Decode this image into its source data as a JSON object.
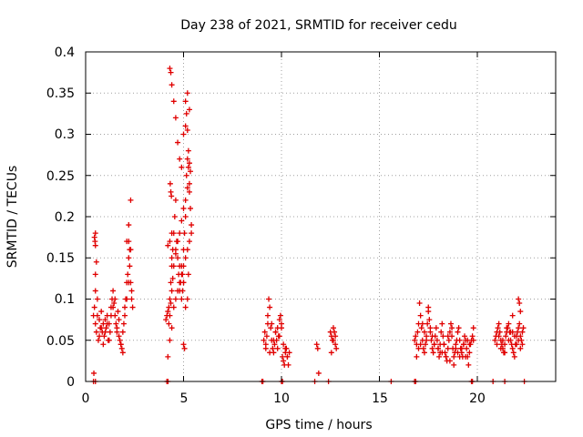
{
  "chart_data": {
    "type": "scatter",
    "title": "Day 238 of 2021, SRMTID for receiver cedu",
    "xlabel": "GPS time / hours",
    "ylabel": "SRMTID / TECUs",
    "xlim": [
      0,
      24
    ],
    "ylim": [
      0,
      0.4
    ],
    "x_ticks": [
      "0",
      "5",
      "10",
      "15",
      "20"
    ],
    "y_ticks": [
      "0",
      "0.05",
      "0.1",
      "0.15",
      "0.2",
      "0.25",
      "0.3",
      "0.35",
      "0.4"
    ],
    "grid": true,
    "marker": "plus",
    "color": "#e00000",
    "series": [
      {
        "name": "SRMTID",
        "x": [
          0.4,
          0.45,
          0.5,
          0.48,
          0.55,
          0.6,
          0.65,
          0.7,
          0.75,
          0.8,
          0.85,
          0.9,
          0.95,
          1.0,
          1.05,
          1.1,
          1.15,
          1.2,
          1.25,
          1.3,
          1.35,
          1.4,
          1.45,
          1.5,
          1.55,
          1.6,
          1.65,
          1.7,
          1.75,
          1.8,
          1.85,
          1.9,
          1.95,
          2.0,
          2.05,
          2.1,
          2.15,
          2.2,
          2.25,
          2.3,
          2.35,
          2.4,
          0.5,
          0.6,
          0.7,
          0.8,
          0.9,
          1.0,
          1.1,
          1.2,
          1.3,
          1.4,
          1.5,
          1.6,
          1.7,
          1.8,
          1.9,
          2.0,
          2.1,
          2.2,
          2.3,
          0.5,
          0.55,
          0.5,
          0.45,
          0.5,
          2.2,
          2.25,
          2.35,
          2.1,
          2.2,
          2.3,
          0.42,
          4.1,
          4.15,
          4.2,
          4.25,
          4.3,
          4.35,
          4.4,
          4.45,
          4.5,
          4.55,
          4.6,
          4.65,
          4.7,
          4.75,
          4.8,
          4.85,
          4.9,
          4.95,
          5.0,
          5.05,
          5.1,
          5.15,
          5.2,
          5.25,
          5.3,
          5.35,
          5.4,
          4.3,
          4.35,
          4.4,
          4.5,
          4.6,
          4.7,
          4.8,
          4.9,
          5.0,
          5.1,
          5.2,
          5.3,
          4.25,
          4.3,
          4.35,
          4.4,
          4.45,
          4.5,
          4.6,
          4.7,
          4.8,
          4.9,
          5.0,
          5.1,
          5.2,
          5.3,
          4.2,
          4.3,
          4.4,
          5.0,
          5.05,
          5.1,
          5.2,
          5.25,
          5.3,
          5.35,
          4.35,
          4.32,
          4.38,
          5.1,
          5.15,
          5.2,
          4.9,
          4.95,
          5.0,
          5.25,
          4.2,
          4.3,
          4.4,
          4.5,
          4.6,
          4.7,
          4.8,
          4.9,
          5.0,
          5.1,
          5.2,
          5.3,
          5.4,
          4.4,
          4.6,
          4.8,
          5.0,
          9.1,
          9.15,
          9.2,
          9.25,
          9.3,
          9.35,
          9.4,
          9.45,
          9.5,
          9.55,
          9.6,
          9.65,
          9.7,
          9.75,
          9.8,
          9.85,
          9.9,
          9.95,
          10.0,
          10.05,
          10.1,
          10.15,
          10.2,
          10.25,
          10.3,
          10.35,
          10.4,
          9.3,
          9.5,
          9.7,
          9.9,
          10.1,
          10.3,
          9.2,
          9.4,
          9.6,
          9.8,
          10.0,
          10.2,
          11.8,
          11.85,
          11.9,
          12.5,
          12.55,
          12.6,
          12.65,
          12.7,
          12.75,
          12.8,
          12.55,
          12.65,
          12.75,
          16.8,
          16.85,
          16.9,
          16.95,
          17.0,
          17.05,
          17.1,
          17.15,
          17.2,
          17.25,
          17.3,
          17.35,
          17.4,
          17.45,
          17.5,
          17.55,
          17.6,
          17.65,
          17.7,
          17.75,
          17.8,
          17.85,
          17.9,
          17.95,
          18.0,
          18.05,
          18.1,
          18.15,
          18.2,
          18.25,
          18.3,
          18.35,
          18.4,
          18.45,
          18.5,
          18.55,
          18.6,
          18.65,
          18.7,
          18.75,
          18.8,
          18.85,
          18.9,
          18.95,
          19.0,
          19.05,
          19.1,
          19.15,
          19.2,
          19.25,
          19.3,
          19.35,
          19.4,
          19.45,
          19.5,
          19.55,
          19.6,
          19.65,
          19.7,
          19.75,
          19.8,
          16.9,
          17.0,
          17.1,
          17.5,
          17.6,
          17.7,
          17.8,
          18.0,
          18.2,
          18.4,
          18.6,
          18.8,
          19.0,
          19.2,
          19.4,
          19.6,
          19.8,
          17.2,
          17.3,
          17.4,
          18.1,
          18.3,
          18.5,
          18.7,
          18.9,
          19.1,
          19.3,
          19.5,
          20.9,
          20.95,
          21.0,
          21.05,
          21.1,
          21.15,
          21.2,
          21.25,
          21.3,
          21.35,
          21.4,
          21.45,
          21.5,
          21.55,
          21.6,
          21.65,
          21.7,
          21.75,
          21.8,
          21.85,
          21.9,
          21.95,
          22.0,
          22.05,
          22.1,
          22.15,
          22.2,
          22.25,
          22.3,
          22.35,
          21.0,
          21.2,
          21.4,
          21.6,
          21.8,
          22.0,
          22.2,
          21.1,
          21.3,
          21.5,
          21.7,
          21.9,
          22.1,
          22.3,
          22.1,
          22.15,
          22.2,
          21.8,
          0.4,
          0.5,
          4.15,
          4.2,
          9.0,
          9.05,
          10.0,
          10.05,
          11.7,
          12.4,
          15.6,
          16.8,
          16.85,
          19.7,
          19.75,
          20.8,
          21.4,
          22.4
        ],
        "y": [
          0.08,
          0.09,
          0.07,
          0.17,
          0.06,
          0.08,
          0.05,
          0.075,
          0.065,
          0.085,
          0.06,
          0.07,
          0.055,
          0.075,
          0.065,
          0.08,
          0.05,
          0.07,
          0.06,
          0.09,
          0.1,
          0.11,
          0.095,
          0.08,
          0.07,
          0.06,
          0.085,
          0.075,
          0.05,
          0.045,
          0.04,
          0.06,
          0.07,
          0.09,
          0.1,
          0.12,
          0.13,
          0.15,
          0.14,
          0.12,
          0.1,
          0.09,
          0.18,
          0.1,
          0.055,
          0.065,
          0.045,
          0.06,
          0.07,
          0.05,
          0.08,
          0.09,
          0.1,
          0.065,
          0.055,
          0.045,
          0.035,
          0.08,
          0.17,
          0.19,
          0.16,
          0.13,
          0.145,
          0.165,
          0.175,
          0.11,
          0.17,
          0.16,
          0.11,
          0.1,
          0.12,
          0.22,
          0.01,
          0.075,
          0.08,
          0.085,
          0.09,
          0.1,
          0.12,
          0.14,
          0.16,
          0.18,
          0.2,
          0.22,
          0.17,
          0.15,
          0.13,
          0.11,
          0.12,
          0.14,
          0.13,
          0.16,
          0.18,
          0.2,
          0.25,
          0.27,
          0.26,
          0.23,
          0.21,
          0.19,
          0.38,
          0.375,
          0.36,
          0.34,
          0.32,
          0.29,
          0.27,
          0.26,
          0.3,
          0.34,
          0.35,
          0.33,
          0.07,
          0.08,
          0.095,
          0.11,
          0.125,
          0.14,
          0.155,
          0.17,
          0.18,
          0.195,
          0.21,
          0.22,
          0.235,
          0.24,
          0.03,
          0.05,
          0.065,
          0.045,
          0.04,
          0.09,
          0.1,
          0.28,
          0.265,
          0.255,
          0.23,
          0.24,
          0.225,
          0.31,
          0.325,
          0.305,
          0.1,
          0.11,
          0.12,
          0.13,
          0.165,
          0.17,
          0.15,
          0.09,
          0.1,
          0.11,
          0.12,
          0.13,
          0.14,
          0.15,
          0.16,
          0.17,
          0.18,
          0.18,
          0.16,
          0.14,
          0.12,
          0.05,
          0.06,
          0.045,
          0.055,
          0.07,
          0.1,
          0.09,
          0.065,
          0.05,
          0.04,
          0.035,
          0.045,
          0.06,
          0.05,
          0.04,
          0.055,
          0.075,
          0.08,
          0.065,
          0.03,
          0.025,
          0.02,
          0.035,
          0.04,
          0.03,
          0.02,
          0.035,
          0.08,
          0.07,
          0.06,
          0.055,
          0.045,
          0.03,
          0.04,
          0.035,
          0.05,
          0.065,
          0.07,
          0.04,
          0.045,
          0.04,
          0.01,
          0.06,
          0.055,
          0.05,
          0.065,
          0.06,
          0.045,
          0.04,
          0.035,
          0.05,
          0.055,
          0.05,
          0.055,
          0.045,
          0.06,
          0.07,
          0.095,
          0.08,
          0.065,
          0.05,
          0.04,
          0.035,
          0.045,
          0.055,
          0.07,
          0.09,
          0.075,
          0.06,
          0.05,
          0.04,
          0.035,
          0.045,
          0.055,
          0.065,
          0.05,
          0.04,
          0.03,
          0.045,
          0.06,
          0.07,
          0.055,
          0.045,
          0.035,
          0.03,
          0.025,
          0.04,
          0.05,
          0.06,
          0.07,
          0.055,
          0.04,
          0.03,
          0.035,
          0.045,
          0.05,
          0.06,
          0.065,
          0.05,
          0.04,
          0.035,
          0.03,
          0.045,
          0.055,
          0.05,
          0.04,
          0.03,
          0.02,
          0.035,
          0.045,
          0.05,
          0.055,
          0.065,
          0.03,
          0.04,
          0.045,
          0.085,
          0.065,
          0.055,
          0.045,
          0.04,
          0.035,
          0.03,
          0.025,
          0.02,
          0.035,
          0.04,
          0.03,
          0.045,
          0.05,
          0.07,
          0.06,
          0.05,
          0.035,
          0.045,
          0.055,
          0.065,
          0.04,
          0.03,
          0.045,
          0.05,
          0.05,
          0.055,
          0.06,
          0.065,
          0.07,
          0.06,
          0.05,
          0.045,
          0.04,
          0.035,
          0.045,
          0.055,
          0.06,
          0.065,
          0.07,
          0.06,
          0.05,
          0.045,
          0.04,
          0.035,
          0.03,
          0.045,
          0.055,
          0.06,
          0.065,
          0.07,
          0.055,
          0.05,
          0.06,
          0.065,
          0.045,
          0.04,
          0.035,
          0.05,
          0.06,
          0.045,
          0.04,
          0.055,
          0.05,
          0.065,
          0.06,
          0.055,
          0.05,
          0.045,
          0.1,
          0.095,
          0.085,
          0.08,
          0,
          0,
          0,
          0,
          0,
          0,
          0,
          0,
          0,
          0,
          0,
          0,
          0,
          0,
          0,
          0,
          0,
          0
        ]
      }
    ]
  }
}
